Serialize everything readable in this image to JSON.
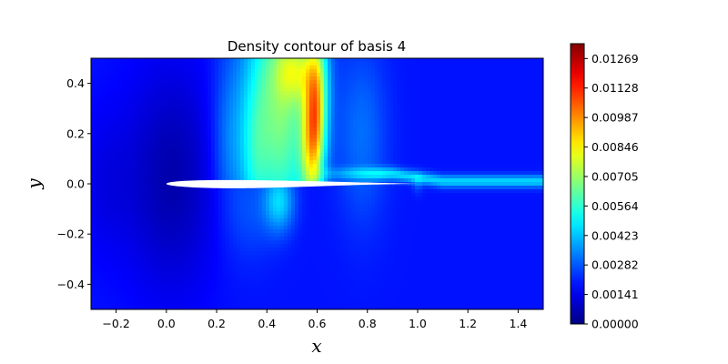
{
  "chart_data": {
    "type": "heatmap",
    "title": "Density contour of basis 4",
    "xlabel": "x",
    "ylabel": "y",
    "xlim": [
      -0.3,
      1.5
    ],
    "ylim": [
      -0.5,
      0.5
    ],
    "xticks": [
      -0.2,
      0.0,
      0.2,
      0.4,
      0.6,
      0.8,
      1.0,
      1.2,
      1.4
    ],
    "xtick_labels": [
      "−0.2",
      "0.0",
      "0.2",
      "0.4",
      "0.6",
      "0.8",
      "1.0",
      "1.2",
      "1.4"
    ],
    "yticks": [
      0.4,
      0.2,
      0.0,
      -0.2,
      -0.4
    ],
    "ytick_labels": [
      "0.4",
      "0.2",
      "0.0",
      "−0.2",
      "−0.4"
    ],
    "colorbar": {
      "colormap": "jet",
      "min": 0.0,
      "max": 0.0134,
      "ticks": [
        0.0,
        0.00141,
        0.00282,
        0.00423,
        0.00564,
        0.00705,
        0.00846,
        0.00987,
        0.01128,
        0.01269
      ],
      "tick_labels": [
        "0.00000",
        "0.00141",
        "0.00282",
        "0.00423",
        "0.00564",
        "0.00705",
        "0.00846",
        "0.00987",
        "0.01128",
        "0.01269"
      ]
    },
    "airfoil": {
      "leading_edge_x": 0.0,
      "trailing_edge_x": 1.0,
      "max_upper_y": 0.06,
      "min_lower_y": -0.055,
      "fill": "#ffffff"
    },
    "features": [
      {
        "name": "shock-band-peak",
        "x": 0.59,
        "y_range": [
          0.05,
          0.48
        ],
        "value": 0.0131
      },
      {
        "name": "upper-flow-band",
        "x_range": [
          0.3,
          0.7
        ],
        "value_range": [
          0.004,
          0.009
        ]
      },
      {
        "name": "lower-surface-band",
        "x": 0.45,
        "y_range": [
          -0.2,
          -0.05
        ],
        "value": 0.004
      },
      {
        "name": "wake",
        "x_range": [
          0.6,
          1.5
        ],
        "y": 0.03,
        "value": 0.0035
      },
      {
        "name": "background-field",
        "value": 0.0015
      }
    ]
  }
}
